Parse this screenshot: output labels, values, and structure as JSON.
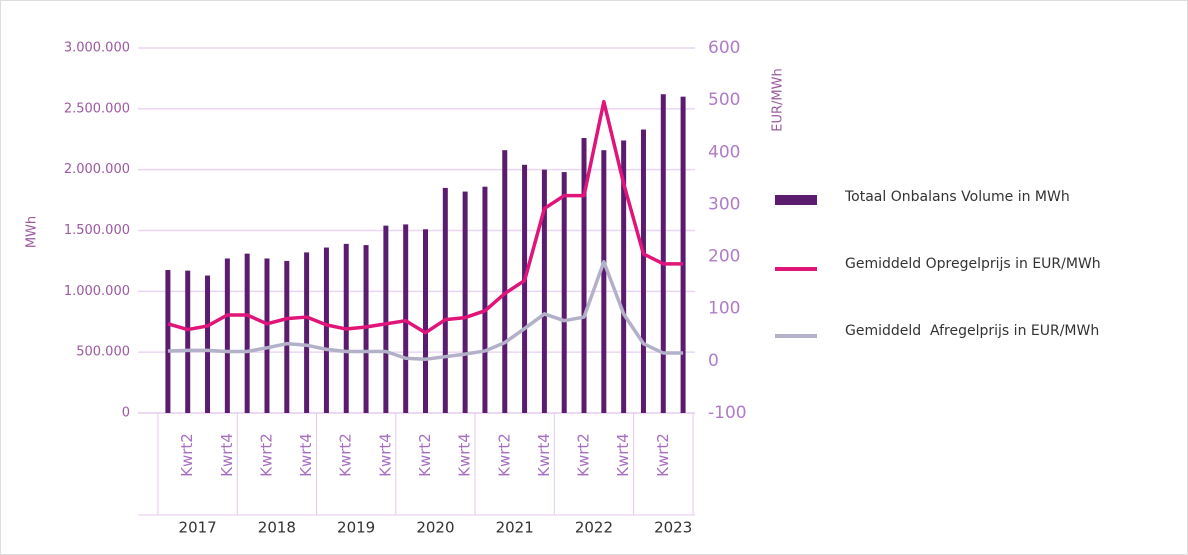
{
  "chart_data": {
    "type": "bar-line",
    "ylabel": "MWh",
    "y2label": "EUR/MWh",
    "categories": [
      null,
      "Kwrt2",
      null,
      "Kwrt4",
      null,
      "Kwrt2",
      null,
      "Kwrt4",
      null,
      "Kwrt2",
      null,
      "Kwrt4",
      null,
      "Kwrt2",
      null,
      "Kwrt4",
      null,
      "Kwrt2",
      null,
      "Kwrt4",
      null,
      "Kwrt2",
      null,
      "Kwrt4",
      null,
      "Kwrt2",
      null
    ],
    "groups": [
      "2017",
      "2018",
      "2019",
      "2020",
      "2021",
      "2022",
      "2023"
    ],
    "ylim": [
      0,
      3000000
    ],
    "yticks": [
      0,
      {
        "value": 500000,
        "label": "500.000"
      },
      {
        "value": 1000000,
        "label": "1.000.000"
      },
      {
        "value": 1500000,
        "label": "1.500.000"
      },
      {
        "value": 2000000,
        "label": "2.000.000"
      },
      {
        "value": 2500000,
        "label": "2.500.000"
      },
      {
        "value": 3000000,
        "label": "3.000.000"
      }
    ],
    "y2lim": [
      -100,
      600
    ],
    "y2ticks": [
      -100,
      0,
      100,
      200,
      300,
      400,
      500,
      600
    ],
    "grid": true,
    "series": [
      {
        "name": "Totaal Onbalans Volume in MWh",
        "kind": "bar",
        "color": "#5b1c70",
        "values": [
          1175000,
          1170000,
          1130000,
          1270000,
          1310000,
          1270000,
          1250000,
          1320000,
          1360000,
          1390000,
          1380000,
          1540000,
          1550000,
          1510000,
          1850000,
          1820000,
          1860000,
          2160000,
          2040000,
          2000000,
          1980000,
          2260000,
          2160000,
          2240000,
          2330000,
          2620000,
          2600000
        ]
      },
      {
        "name": "Gemiddeld Opregelprijs in EUR/MWh",
        "kind": "line",
        "axis": "y2",
        "color": "#e0157a",
        "values": [
          71,
          60,
          67,
          88,
          88,
          71,
          81,
          84,
          69,
          61,
          65,
          71,
          77,
          54,
          79,
          83,
          96,
          129,
          154,
          292,
          317,
          317,
          497,
          340,
          205,
          186,
          186
        ]
      },
      {
        "name": "Gemiddeld  Afregelprijs in EUR/MWh",
        "kind": "line",
        "axis": "y2",
        "color": "#b3b0ca",
        "values": [
          19,
          20,
          20,
          18,
          18,
          25,
          33,
          30,
          22,
          18,
          18,
          18,
          5,
          3,
          8,
          13,
          19,
          35,
          62,
          90,
          77,
          84,
          190,
          90,
          33,
          15,
          15
        ]
      }
    ]
  }
}
